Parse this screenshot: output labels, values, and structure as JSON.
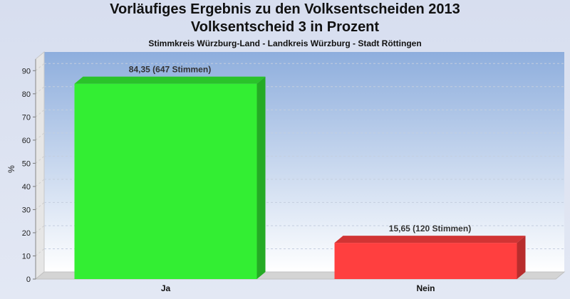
{
  "chart_data": {
    "type": "bar",
    "title": "Vorläufiges Ergebnis zu den Volksentscheiden 2013",
    "subtitle": "Volksentscheid 3 in Prozent",
    "subtitle2": "Stimmkreis Würzburg-Land - Landkreis Würzburg - Stadt Röttingen",
    "ylabel": "%",
    "xlabel": "",
    "ylim": [
      0,
      95
    ],
    "yticks": [
      0,
      10,
      20,
      30,
      40,
      50,
      60,
      70,
      80,
      90
    ],
    "grid": true,
    "categories": [
      "Ja",
      "Nein"
    ],
    "values": [
      84.35,
      15.65
    ],
    "data_labels": [
      "84,35 (647 Stimmen)",
      "15,65 (120 Stimmen)"
    ],
    "colors": [
      "#33ee33",
      "#ff3f3f"
    ]
  }
}
